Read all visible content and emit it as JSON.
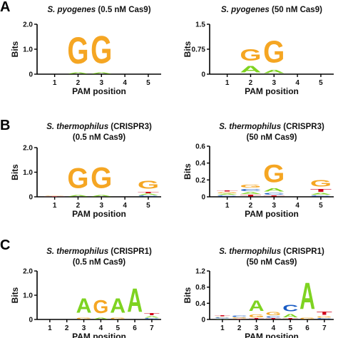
{
  "colors": {
    "A": "#7ed321",
    "C": "#1a5cc4",
    "G": "#f5a623",
    "T": "#d0021b"
  },
  "chart_data": [
    {
      "type": "sequence-logo",
      "panel_letter": "A",
      "title": {
        "italic": "S. pyogenes",
        "rest": " (0.5 nM Cas9)",
        "line2": ""
      },
      "xlabel": "PAM position",
      "ylabel": "Bits",
      "x": [
        "1",
        "2",
        "3",
        "4",
        "5"
      ],
      "ylim": [
        0,
        2.0
      ],
      "yticks": [
        "0",
        "1.0",
        "2.0"
      ],
      "ytick_values": [
        0,
        1.0,
        2.0
      ],
      "positions": [
        {
          "pos": 1,
          "stack": []
        },
        {
          "pos": 2,
          "stack": [
            {
              "base": "A",
              "bits": 0.1
            },
            {
              "base": "G",
              "bits": 1.7
            }
          ]
        },
        {
          "pos": 3,
          "stack": [
            {
              "base": "A",
              "bits": 0.1
            },
            {
              "base": "G",
              "bits": 1.75
            }
          ]
        },
        {
          "pos": 4,
          "stack": []
        },
        {
          "pos": 5,
          "stack": []
        }
      ]
    },
    {
      "type": "sequence-logo",
      "panel_letter": "",
      "title": {
        "italic": "S. pyogenes",
        "rest": " (50 nM Cas9)",
        "line2": ""
      },
      "xlabel": "PAM position",
      "ylabel": "Bits",
      "x": [
        "1",
        "2",
        "3",
        "4",
        "5"
      ],
      "ylim": [
        0,
        1.5
      ],
      "yticks": [
        "0",
        "0.75",
        "1.5"
      ],
      "ytick_values": [
        0,
        0.75,
        1.5
      ],
      "positions": [
        {
          "pos": 1,
          "stack": []
        },
        {
          "pos": 2,
          "stack": [
            {
              "base": "A",
              "bits": 0.3
            },
            {
              "base": "G",
              "bits": 0.55
            }
          ]
        },
        {
          "pos": 3,
          "stack": [
            {
              "base": "A",
              "bits": 0.15
            },
            {
              "base": "G",
              "bits": 1.05
            }
          ]
        },
        {
          "pos": 4,
          "stack": []
        },
        {
          "pos": 5,
          "stack": []
        }
      ]
    },
    {
      "type": "sequence-logo",
      "panel_letter": "B",
      "title": {
        "italic": "S. thermophilus",
        "rest": " (CRISPR3)",
        "line2": "(0.5 nM Cas9)"
      },
      "xlabel": "PAM position",
      "ylabel": "Bits",
      "x": [
        "1",
        "2",
        "3",
        "4",
        "5"
      ],
      "ylim": [
        0,
        2.0
      ],
      "yticks": [
        "0",
        "1.0",
        "2.0"
      ],
      "ytick_values": [
        0,
        1.0,
        2.0
      ],
      "positions": [
        {
          "pos": 1,
          "stack": [
            {
              "base": "T",
              "bits": 0.03
            },
            {
              "base": "G",
              "bits": 0.03
            }
          ]
        },
        {
          "pos": 2,
          "stack": [
            {
              "base": "A",
              "bits": 0.1
            },
            {
              "base": "G",
              "bits": 1.3
            }
          ]
        },
        {
          "pos": 3,
          "stack": [
            {
              "base": "A",
              "bits": 0.1
            },
            {
              "base": "G",
              "bits": 1.35
            }
          ]
        },
        {
          "pos": 4,
          "stack": []
        },
        {
          "pos": 5,
          "stack": [
            {
              "base": "C",
              "bits": 0.05
            },
            {
              "base": "A",
              "bits": 0.08
            },
            {
              "base": "T",
              "bits": 0.1
            },
            {
              "base": "G",
              "bits": 0.5
            }
          ]
        }
      ]
    },
    {
      "type": "sequence-logo",
      "panel_letter": "",
      "title": {
        "italic": "S. thermophilus",
        "rest": " (CRISPR3)",
        "line2": "(50 nM Cas9)"
      },
      "xlabel": "PAM position",
      "ylabel": "Bits",
      "x": [
        "1",
        "2",
        "3",
        "4",
        "5"
      ],
      "ylim": [
        0,
        0.6
      ],
      "yticks": [
        "0",
        "0.2",
        "0.4",
        "0.6"
      ],
      "ytick_values": [
        0,
        0.2,
        0.4,
        0.6
      ],
      "positions": [
        {
          "pos": 1,
          "stack": [
            {
              "base": "C",
              "bits": 0.02
            },
            {
              "base": "A",
              "bits": 0.02
            },
            {
              "base": "G",
              "bits": 0.02
            },
            {
              "base": "T",
              "bits": 0.02
            }
          ]
        },
        {
          "pos": 2,
          "stack": [
            {
              "base": "T",
              "bits": 0.03
            },
            {
              "base": "A",
              "bits": 0.03
            },
            {
              "base": "C",
              "bits": 0.04
            },
            {
              "base": "G",
              "bits": 0.05
            }
          ]
        },
        {
          "pos": 3,
          "stack": [
            {
              "base": "T",
              "bits": 0.02
            },
            {
              "base": "C",
              "bits": 0.03
            },
            {
              "base": "A",
              "bits": 0.06
            },
            {
              "base": "G",
              "bits": 0.33
            }
          ]
        },
        {
          "pos": 4,
          "stack": []
        },
        {
          "pos": 5,
          "stack": [
            {
              "base": "C",
              "bits": 0.02
            },
            {
              "base": "A",
              "bits": 0.03
            },
            {
              "base": "T",
              "bits": 0.05
            },
            {
              "base": "G",
              "bits": 0.12
            }
          ]
        }
      ]
    },
    {
      "type": "sequence-logo",
      "panel_letter": "C",
      "title": {
        "italic": "S. thermophilus",
        "rest": " (CRISPR1)",
        "line2": "(0.5 nM Cas9)"
      },
      "xlabel": "PAM position",
      "ylabel": "Bits",
      "x": [
        "1",
        "2",
        "3",
        "4",
        "5",
        "6",
        "7"
      ],
      "ylim": [
        0,
        2.0
      ],
      "yticks": [
        "0",
        "1.0",
        "2.0"
      ],
      "ytick_values": [
        0,
        1.0,
        2.0
      ],
      "positions": [
        {
          "pos": 1,
          "stack": []
        },
        {
          "pos": 2,
          "stack": []
        },
        {
          "pos": 3,
          "stack": [
            {
              "base": "G",
              "bits": 0.1
            },
            {
              "base": "A",
              "bits": 0.95
            }
          ]
        },
        {
          "pos": 4,
          "stack": [
            {
              "base": "A",
              "bits": 0.1
            },
            {
              "base": "G",
              "bits": 0.85
            }
          ]
        },
        {
          "pos": 5,
          "stack": [
            {
              "base": "G",
              "bits": 0.1
            },
            {
              "base": "A",
              "bits": 0.95
            }
          ]
        },
        {
          "pos": 6,
          "stack": [
            {
              "base": "A",
              "bits": 1.55
            }
          ]
        },
        {
          "pos": 7,
          "stack": [
            {
              "base": "C",
              "bits": 0.05
            },
            {
              "base": "A",
              "bits": 0.1
            },
            {
              "base": "T",
              "bits": 0.15
            }
          ]
        }
      ]
    },
    {
      "type": "sequence-logo",
      "panel_letter": "",
      "title": {
        "italic": "S. thermophilus",
        "rest": " (CRISPR1)",
        "line2": "(50 nM Cas9)"
      },
      "xlabel": "PAM position",
      "ylabel": "Bits",
      "x": [
        "1",
        "2",
        "3",
        "4",
        "5",
        "6",
        "7"
      ],
      "ylim": [
        0,
        1.2
      ],
      "yticks": [
        "0",
        "0.4",
        "0.8",
        "1.2"
      ],
      "ytick_values": [
        0,
        0.4,
        0.8,
        1.2
      ],
      "positions": [
        {
          "pos": 1,
          "stack": [
            {
              "base": "A",
              "bits": 0.02
            },
            {
              "base": "C",
              "bits": 0.03
            },
            {
              "base": "G",
              "bits": 0.02
            },
            {
              "base": "T",
              "bits": 0.03
            }
          ]
        },
        {
          "pos": 2,
          "stack": [
            {
              "base": "T",
              "bits": 0.02
            },
            {
              "base": "G",
              "bits": 0.03
            },
            {
              "base": "C",
              "bits": 0.05
            }
          ]
        },
        {
          "pos": 3,
          "stack": [
            {
              "base": "T",
              "bits": 0.03
            },
            {
              "base": "G",
              "bits": 0.1
            },
            {
              "base": "A",
              "bits": 0.42
            }
          ]
        },
        {
          "pos": 4,
          "stack": [
            {
              "base": "T",
              "bits": 0.03
            },
            {
              "base": "C",
              "bits": 0.05
            },
            {
              "base": "G",
              "bits": 0.12
            }
          ]
        },
        {
          "pos": 5,
          "stack": [
            {
              "base": "T",
              "bits": 0.03
            },
            {
              "base": "A",
              "bits": 0.12
            },
            {
              "base": "C",
              "bits": 0.25
            }
          ]
        },
        {
          "pos": 6,
          "stack": [
            {
              "base": "G",
              "bits": 0.05
            },
            {
              "base": "A",
              "bits": 1.05
            }
          ]
        },
        {
          "pos": 7,
          "stack": [
            {
              "base": "C",
              "bits": 0.03
            },
            {
              "base": "G",
              "bits": 0.06
            },
            {
              "base": "T",
              "bits": 0.12
            }
          ]
        }
      ]
    }
  ]
}
